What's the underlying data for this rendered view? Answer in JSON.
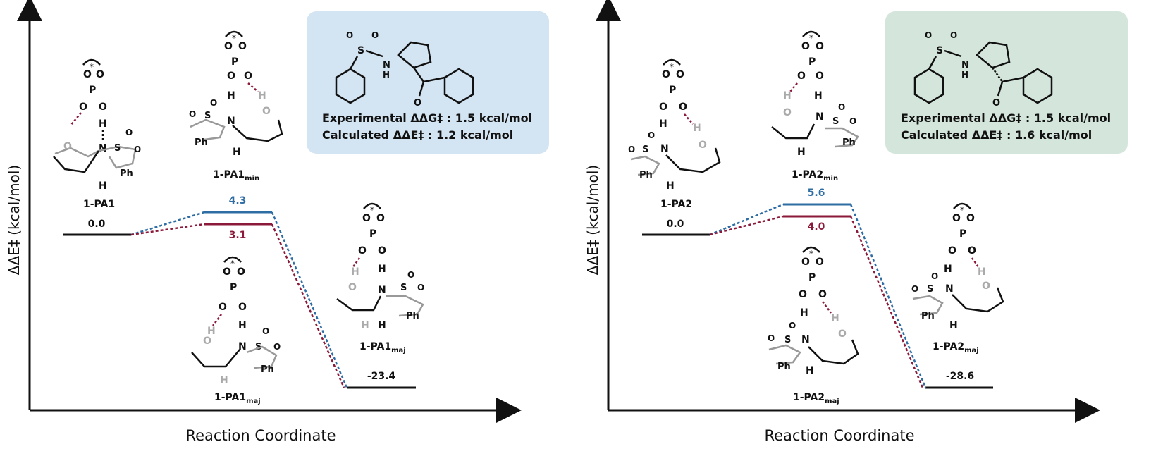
{
  "colors": {
    "major": "#8b1a3a",
    "minor": "#2e6ca4",
    "baseline": "#111111",
    "box_left": "#d3e4f2",
    "box_right": "#d4e6dc"
  },
  "panels": [
    {
      "id": "left",
      "ylabel": "ΔΔE‡ (kcal/mol)",
      "xlabel": "Reaction Coordinate",
      "box": {
        "line1": "Experimental ΔΔG‡ : 1.5 kcal/mol",
        "line2": "Calculated ΔΔE‡ : 1.2 kcal/mol"
      },
      "levels": {
        "start": "0.0",
        "ts_minor": "4.3",
        "ts_major": "3.1",
        "product": "-23.4"
      },
      "structures": {
        "reactant": "1-PA1",
        "ts_min_base": "1-PA1",
        "ts_min_sub": "min",
        "ts_maj_base": "1-PA1",
        "ts_maj_sub": "maj",
        "prod_base": "1-PA1",
        "prod_sub": "maj"
      }
    },
    {
      "id": "right",
      "ylabel": "ΔΔE‡ (kcal/mol)",
      "xlabel": "Reaction Coordinate",
      "box": {
        "line1": "Experimental ΔΔG‡ : 1.5 kcal/mol",
        "line2": "Calculated ΔΔE‡ : 1.6 kcal/mol"
      },
      "levels": {
        "start": "0.0",
        "ts_minor": "5.6",
        "ts_major": "4.0",
        "product": "-28.6"
      },
      "structures": {
        "reactant": "1-PA2",
        "ts_min_base": "1-PA2",
        "ts_min_sub": "min",
        "ts_maj_base": "1-PA2",
        "ts_maj_sub": "maj",
        "prod_base": "1-PA2",
        "prod_sub": "maj"
      }
    }
  ]
}
